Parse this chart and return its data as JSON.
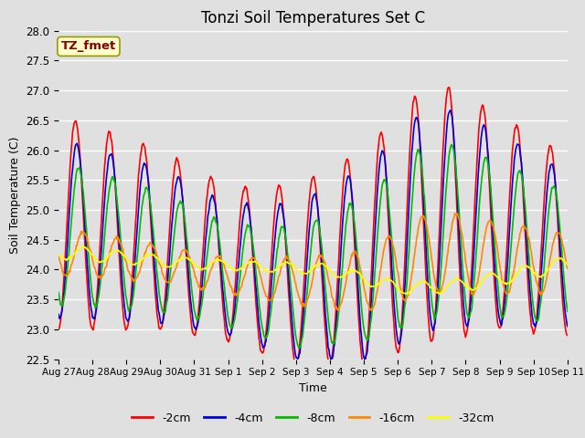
{
  "title": "Tonzi Soil Temperatures Set C",
  "xlabel": "Time",
  "ylabel": "Soil Temperature (C)",
  "ylim": [
    22.5,
    28.0
  ],
  "annotation": "TZ_fmet",
  "line_colors": [
    "#ff0000",
    "#0000dd",
    "#00bb00",
    "#ff8800",
    "#ffff00"
  ],
  "line_labels": [
    "-2cm",
    "-4cm",
    "-8cm",
    "-16cm",
    "-32cm"
  ],
  "line_widths": [
    1.2,
    1.2,
    1.2,
    1.2,
    1.2
  ],
  "background_color": "#e0e0e0",
  "plot_area_color": "#e0e0e0",
  "title_fontsize": 12,
  "axis_fontsize": 9,
  "legend_fontsize": 9,
  "xtick_labels": [
    "Aug 27",
    "Aug 28",
    "Aug 29",
    "Aug 30",
    "Aug 31",
    "Sep 1",
    "Sep 2",
    "Sep 3",
    "Sep 4",
    "Sep 5",
    "Sep 6",
    "Sep 7",
    "Sep 8",
    "Sep 9",
    "Sep 10",
    "Sep 11"
  ],
  "n_points": 720,
  "total_days": 15
}
